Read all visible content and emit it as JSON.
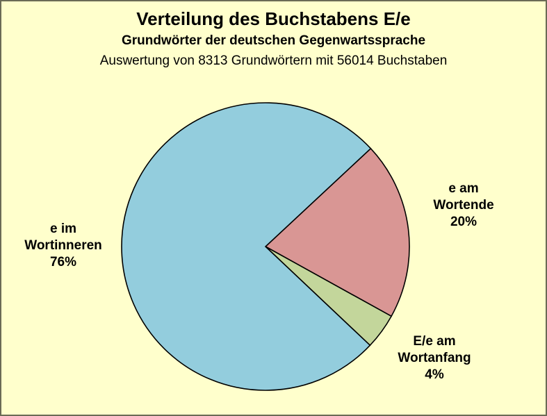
{
  "colors": {
    "background": "#FFFFCC",
    "frame_border": "#6B6B55",
    "slice_outline": "#000000",
    "text": "#000000"
  },
  "chart_data": {
    "type": "pie",
    "title": "Verteilung des Buchstabens E/e",
    "subtitle": "Grundwörter der deutschen Gegenwartssprache",
    "note": "Auswertung von 8313 Grundwörtern mit 56014 Buchstaben",
    "legend_position": "none",
    "start_angle_deg": 47,
    "direction": "clockwise",
    "slices": [
      {
        "label": "e am Wortende",
        "value": 20,
        "unit": "%",
        "color": "#D99694",
        "callout": "e am\nWortende\n20%"
      },
      {
        "label": "E/e am Wortanfang",
        "value": 4,
        "unit": "%",
        "color": "#C3D69B",
        "callout": "E/e am\nWortanfang\n4%"
      },
      {
        "label": "e im Wortinneren",
        "value": 76,
        "unit": "%",
        "color": "#93CDDD",
        "callout": "e im\nWortinneren\n76%"
      }
    ]
  }
}
